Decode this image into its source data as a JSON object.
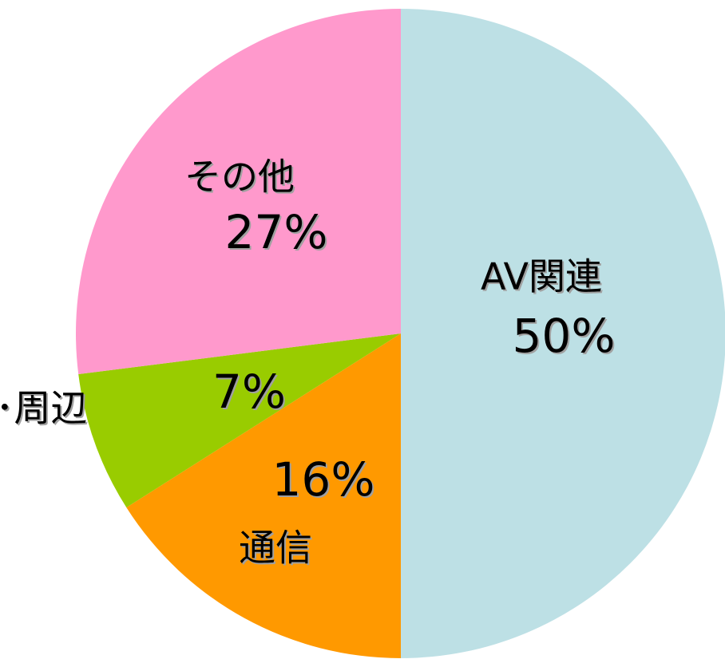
{
  "chart_data": {
    "type": "pie",
    "categories": [
      "AV関連",
      "通信",
      "PC･周辺",
      "その他"
    ],
    "values": [
      50,
      16,
      7,
      27
    ],
    "value_labels": [
      "50%",
      "16%",
      "7%",
      "27%"
    ],
    "colors": [
      "#bde0e5",
      "#ff9900",
      "#99cc00",
      "#ff99cc"
    ]
  }
}
